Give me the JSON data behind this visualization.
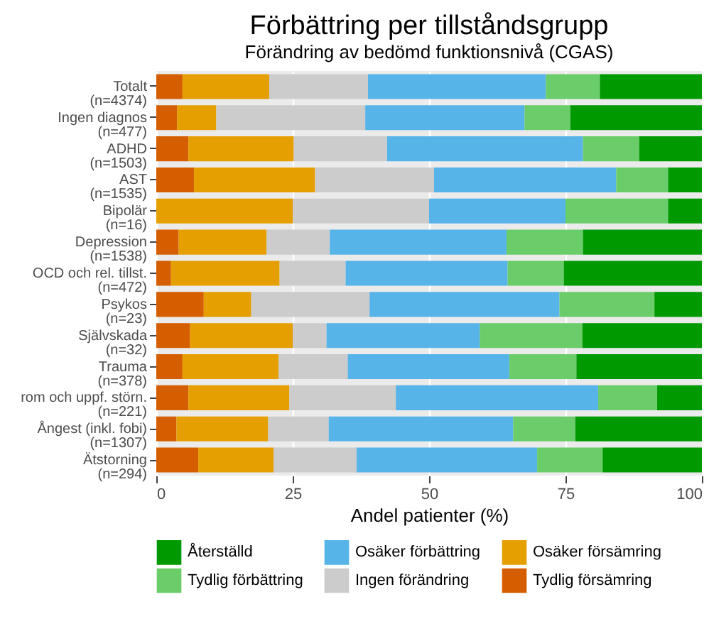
{
  "chart_data": {
    "type": "bar",
    "orientation": "horizontal",
    "stacked": true,
    "title": "Förbättring per tillståndsgrupp",
    "subtitle": "Förändring av bedömd funktionsnivå (CGAS)",
    "xlabel": "Andel patienter (%)",
    "categories": [
      "Totalt\n(n=4374)",
      "Ingen diagnos\n(n=477)",
      "ADHD\n(n=1503)",
      "AST\n(n=1535)",
      "Bipolär\n(n=16)",
      "Depression\n(n=1538)",
      "OCD och rel. tillst.\n(n=472)",
      "Psykos\n(n=23)",
      "Självskada\n(n=32)",
      "Trauma\n(n=378)",
      "rom och uppf. störn.\n(n=221)",
      "Ångest (inkl. fobi)\n(n=1307)",
      "Ätstorning\n(n=294)"
    ],
    "series": [
      {
        "name": "Tydlig försämring",
        "color": "#d55e00",
        "values": [
          4.8,
          3.8,
          5.9,
          6.9,
          0,
          4.1,
          2.7,
          8.7,
          6.2,
          4.8,
          5.9,
          3.7,
          7.7
        ]
      },
      {
        "name": "Osäker försämring",
        "color": "#e69f00",
        "values": [
          15.9,
          7.2,
          19.3,
          22.2,
          25,
          16.1,
          19.9,
          8.7,
          18.8,
          17.6,
          18.5,
          16.8,
          13.8
        ]
      },
      {
        "name": "Ingen förändring",
        "color": "#cccccc",
        "values": [
          18.1,
          27.3,
          17.1,
          21.8,
          25,
          11.6,
          12.1,
          21.7,
          6.2,
          12.7,
          19.5,
          11.1,
          15.2
        ]
      },
      {
        "name": "Osäker förbättring",
        "color": "#56b4e9",
        "values": [
          32.6,
          29.2,
          35.9,
          33.4,
          25,
          32.4,
          29.7,
          34.8,
          28.1,
          29.6,
          37.1,
          33.8,
          33.1
        ]
      },
      {
        "name": "Tydlig förbättring",
        "color": "#6acd6a",
        "values": [
          9.9,
          8.4,
          10.3,
          9.5,
          18.8,
          14.0,
          10.3,
          17.4,
          18.8,
          12.3,
          10.8,
          11.4,
          12.0
        ]
      },
      {
        "name": "Återställd",
        "color": "#009900",
        "values": [
          18.7,
          24.1,
          11.5,
          6.2,
          6.2,
          21.8,
          25.3,
          8.7,
          21.9,
          23.0,
          8.2,
          23.2,
          18.2
        ]
      }
    ],
    "xlim": [
      0,
      100
    ],
    "xticks": [
      0,
      25,
      50,
      75,
      100
    ],
    "grid": "x",
    "legend": "bottom"
  }
}
